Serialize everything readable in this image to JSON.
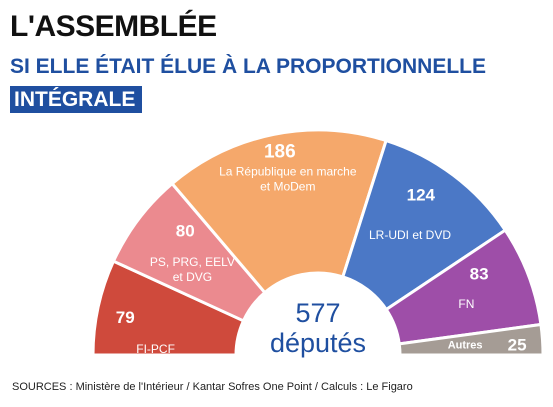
{
  "header": {
    "title": "L'ASSEMBLÉE",
    "subtitle": "SI ELLE ÉTAIT ÉLUE À LA PROPORTIONNELLE",
    "tag": "INTÉGRALE"
  },
  "center": {
    "total": "577",
    "label": "députés"
  },
  "footer": {
    "sources": "SOURCES : Ministère de l'Intérieur / Kantar Sofres One Point / Calculs : Le Figaro"
  },
  "chart_data": {
    "type": "pie",
    "shape": "half-donut",
    "total": 577,
    "series": [
      {
        "name": "FI-PCF",
        "value": 79,
        "color": "#cf4a3c",
        "label_lines": [
          "FI-PCF"
        ],
        "label_color": "#ffffff"
      },
      {
        "name": "PS, PRG, EELV et DVG",
        "value": 80,
        "color": "#eb8a8f",
        "label_lines": [
          "PS, PRG, EELV",
          "et DVG"
        ],
        "label_color": "#ffffff"
      },
      {
        "name": "La République en marche et MoDem",
        "value": 186,
        "color": "#f5a86b",
        "label_lines": [
          "La République en marche",
          "et MoDem"
        ],
        "label_color": "#ffffff"
      },
      {
        "name": "LR-UDI et DVD",
        "value": 124,
        "color": "#4b78c6",
        "label_lines": [
          "LR-UDI et DVD"
        ],
        "label_color": "#ffffff"
      },
      {
        "name": "FN",
        "value": 83,
        "color": "#9e4ea8",
        "label_lines": [
          "FN"
        ],
        "label_color": "#ffffff"
      },
      {
        "name": "Autres",
        "value": 25,
        "color": "#a59c95",
        "label_lines": [
          "Autres"
        ],
        "label_color": "#ffffff"
      }
    ]
  }
}
